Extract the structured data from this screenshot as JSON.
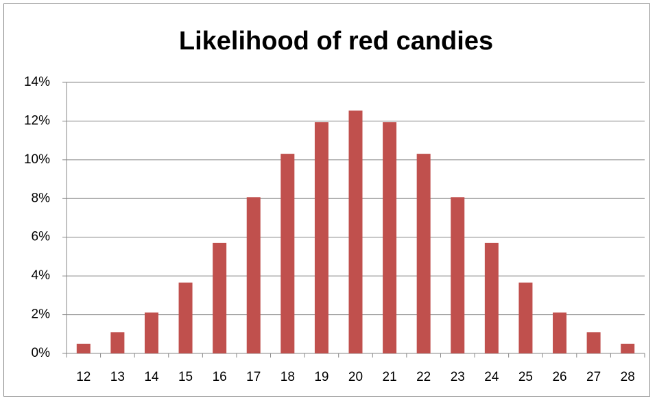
{
  "chart_data": {
    "type": "bar",
    "title": "Likelihood of red candies",
    "categories": [
      12,
      13,
      14,
      15,
      16,
      17,
      18,
      19,
      20,
      21,
      22,
      23,
      24,
      25,
      26,
      27,
      28
    ],
    "values": [
      0.5,
      1.09,
      2.11,
      3.66,
      5.71,
      8.07,
      10.31,
      11.94,
      12.54,
      11.94,
      10.31,
      8.07,
      5.71,
      3.66,
      2.11,
      1.09,
      0.5
    ],
    "color": "#c0504d",
    "ylim": [
      0,
      14
    ],
    "yticks": [
      {
        "value": 0,
        "label": "0%"
      },
      {
        "value": 2,
        "label": "2%"
      },
      {
        "value": 4,
        "label": "4%"
      },
      {
        "value": 6,
        "label": "6%"
      },
      {
        "value": 8,
        "label": "8%"
      },
      {
        "value": 10,
        "label": "10%"
      },
      {
        "value": 12,
        "label": "12%"
      },
      {
        "value": 14,
        "label": "14%"
      }
    ],
    "grid": true
  }
}
